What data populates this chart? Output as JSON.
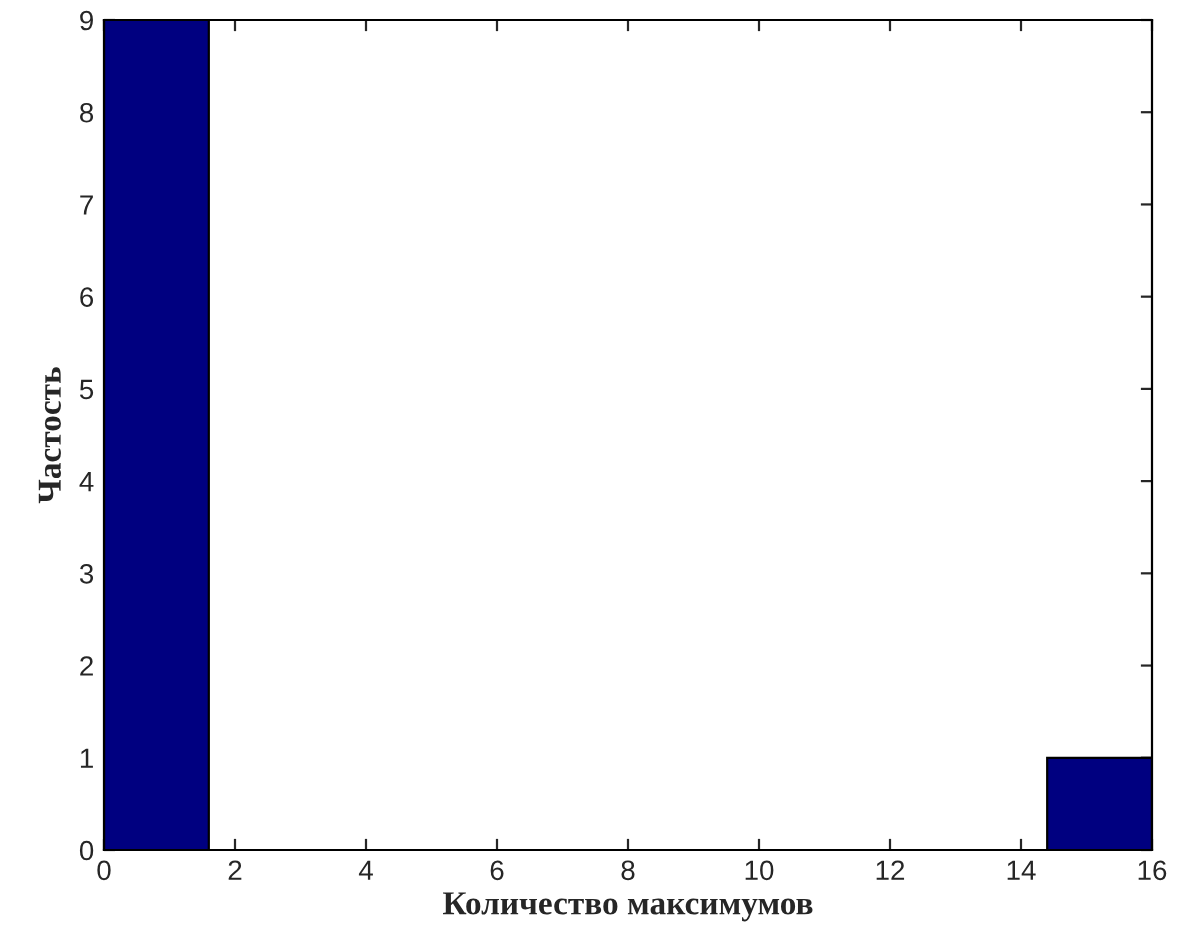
{
  "chart_data": {
    "type": "histogram",
    "xlabel": "Количество максимумов",
    "ylabel": "Частость",
    "bins": [
      0,
      1.6,
      3.2,
      4.8,
      6.4,
      8,
      9.6,
      11.2,
      12.8,
      14.4,
      16
    ],
    "values": [
      9,
      0,
      0,
      0,
      0,
      0,
      0,
      0,
      0,
      1
    ],
    "color": "#000080",
    "xlim": [
      0,
      16
    ],
    "xticks": [
      0,
      2,
      4,
      6,
      8,
      10,
      12,
      14,
      16
    ],
    "ylim": [
      0,
      9
    ],
    "yticks": [
      0,
      1,
      2,
      3,
      4,
      5,
      6,
      7,
      8,
      9
    ],
    "grid": false,
    "legend": false
  }
}
